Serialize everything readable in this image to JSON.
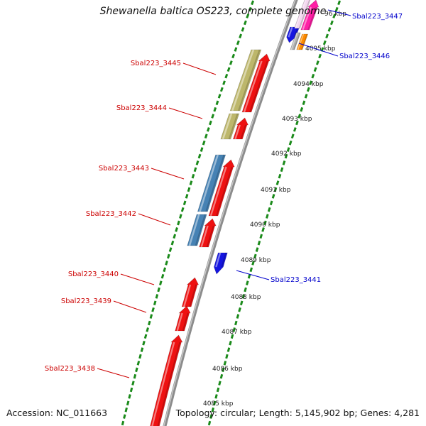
{
  "title": "Shewanella baltica OS223, complete genome",
  "accession": "Accession: NC_011663",
  "summary": "Topology: circular; Length: 5,145,902 bp; Genes: 4,281",
  "colors": {
    "gc_ticks": "#1a8a1a",
    "backbone": "#8c8c8c",
    "gene_forward": "#ee1111",
    "label_forward": "#cc0000",
    "label_reverse": "#0000cc",
    "cds_khaki": "#bdb76b",
    "cds_steelblue": "#4682b4",
    "gene_blue": "#1515e0",
    "gene_pink": "#ff1fa6",
    "gene_orange": "#ff8c00"
  },
  "scale_labels": [
    "4085 kbp",
    "4086 kbp",
    "4087 kbp",
    "4088 kbp",
    "4089 kbp",
    "4090 kbp",
    "4091 kbp",
    "4092 kbp",
    "4093 kbp",
    "4094 kbp",
    "4095 kbp",
    "96 kbp"
  ],
  "gene_labels_left": [
    "Sbal223_3445",
    "Sbal223_3444",
    "Sbal223_3443",
    "Sbal223_3442",
    "Sbal223_3440",
    "Sbal223_3439",
    "Sbal223_3438"
  ],
  "gene_labels_right": [
    "Sbal223_3447",
    "Sbal223_3446",
    "Sbal223_3441"
  ]
}
